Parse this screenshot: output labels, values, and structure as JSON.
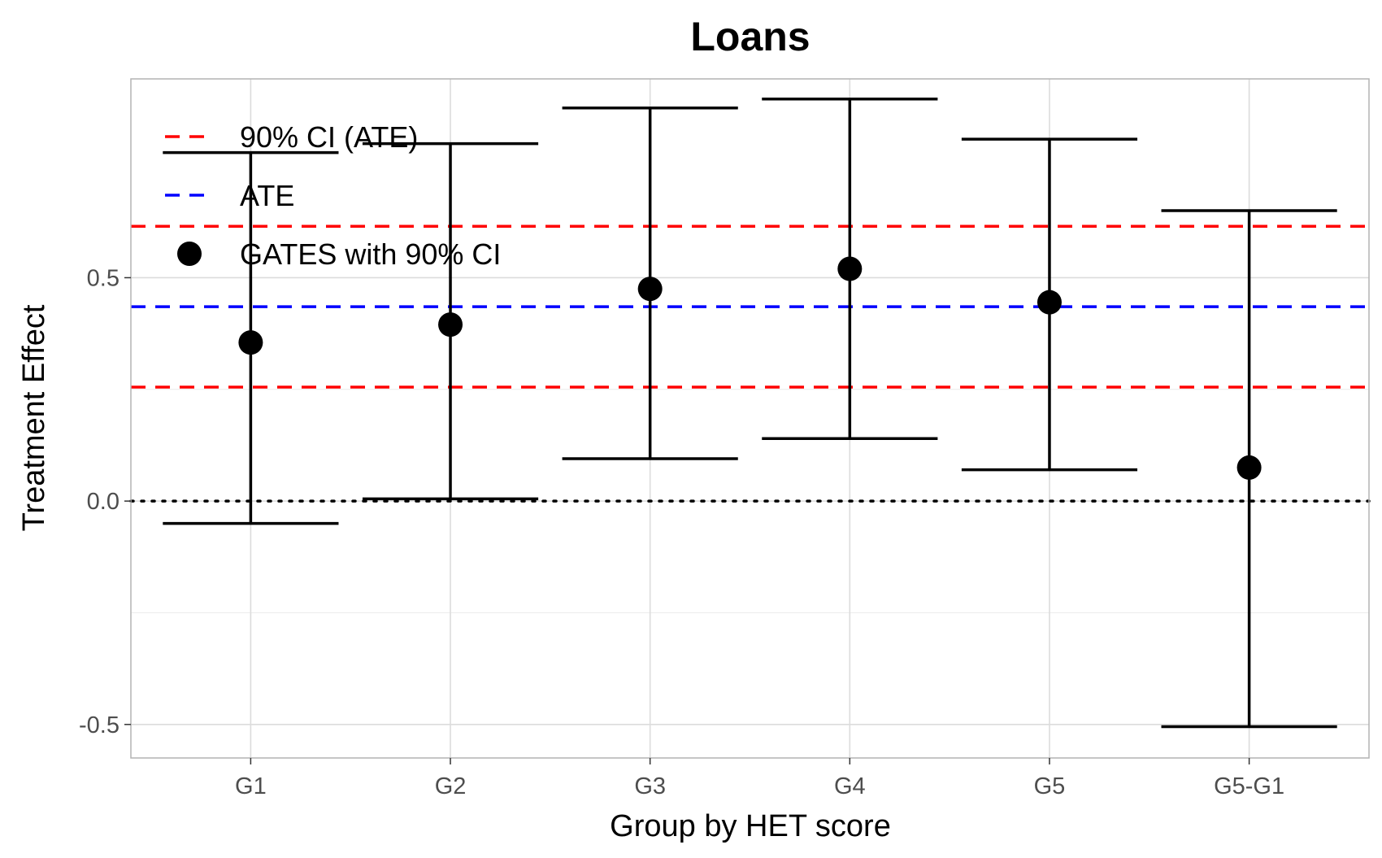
{
  "chart_data": {
    "type": "scatter",
    "title": "Loans",
    "xlabel": "Group by HET score",
    "ylabel": "Treatment Effect",
    "categories": [
      "G1",
      "G2",
      "G3",
      "G4",
      "G5",
      "G5-G1"
    ],
    "series": [
      {
        "name": "GATES with 90% CI",
        "values": [
          0.355,
          0.395,
          0.475,
          0.52,
          0.445,
          0.075
        ],
        "ci_lower": [
          -0.05,
          0.005,
          0.095,
          0.14,
          0.07,
          -0.505
        ],
        "ci_upper": [
          0.78,
          0.8,
          0.88,
          0.9,
          0.81,
          0.65
        ]
      }
    ],
    "reference_lines": [
      {
        "name": "ATE",
        "value": 0.435,
        "color": "#0000ff",
        "style": "dashed"
      },
      {
        "name": "90% CI (ATE)",
        "value": 0.615,
        "color": "#ff0000",
        "style": "dashed"
      },
      {
        "name": "90% CI (ATE)",
        "value": 0.255,
        "color": "#ff0000",
        "style": "dashed"
      },
      {
        "value": 0.0,
        "color": "#000000",
        "style": "dotted"
      }
    ],
    "legend": {
      "placement": "top-left",
      "entries": [
        {
          "label": "90% CI (ATE)",
          "color": "#ff0000",
          "symbol": "dashed-line"
        },
        {
          "label": "ATE",
          "color": "#0000ff",
          "symbol": "dashed-line"
        },
        {
          "label": "GATES with 90% CI",
          "color": "#000000",
          "symbol": "point"
        }
      ]
    },
    "y_ticks": [
      0.5,
      0.0,
      -0.5
    ],
    "y_tick_labels": [
      "0.5",
      "0.0",
      "-0.5"
    ],
    "ylim": [
      -0.575,
      0.945
    ],
    "grid": true
  }
}
